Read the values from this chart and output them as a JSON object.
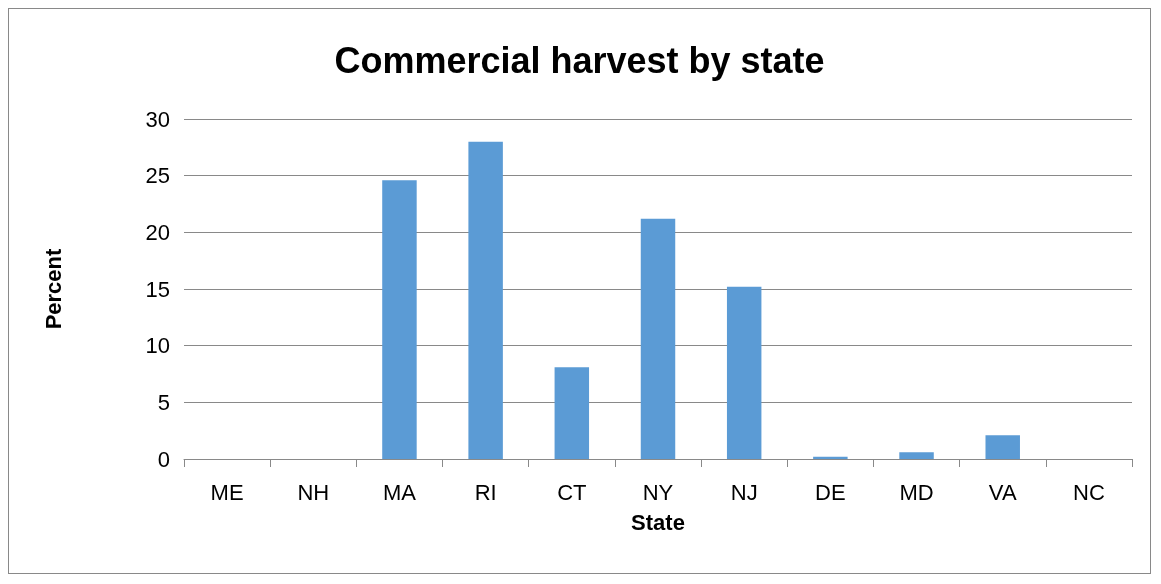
{
  "chart_data": {
    "type": "bar",
    "title": "Commercial harvest by state",
    "xlabel": "State",
    "ylabel": "Percent",
    "categories": [
      "ME",
      "NH",
      "MA",
      "RI",
      "CT",
      "NY",
      "NJ",
      "DE",
      "MD",
      "VA",
      "NC"
    ],
    "values": [
      0,
      0,
      24.6,
      28.0,
      8.1,
      21.2,
      15.2,
      0.2,
      0.6,
      2.1,
      0
    ],
    "color": "#5b9bd5",
    "ylim": [
      0,
      30
    ],
    "yticks": [
      0,
      5,
      10,
      15,
      20,
      25,
      30
    ],
    "grid": "y"
  }
}
